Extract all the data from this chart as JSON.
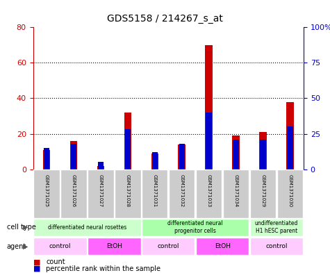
{
  "title": "GDS5158 / 214267_s_at",
  "samples": [
    "GSM1371025",
    "GSM1371026",
    "GSM1371027",
    "GSM1371028",
    "GSM1371031",
    "GSM1371032",
    "GSM1371033",
    "GSM1371034",
    "GSM1371029",
    "GSM1371030"
  ],
  "counts": [
    11,
    16,
    2,
    32,
    9,
    14,
    70,
    19,
    21,
    38
  ],
  "percentiles": [
    15,
    18,
    5,
    28,
    12,
    18,
    40,
    21,
    21,
    30
  ],
  "left_ylim": [
    0,
    80
  ],
  "right_ylim": [
    0,
    100
  ],
  "left_yticks": [
    0,
    20,
    40,
    60,
    80
  ],
  "right_yticks": [
    0,
    25,
    50,
    75,
    100
  ],
  "right_yticklabels": [
    "0",
    "25",
    "50",
    "75",
    "100%"
  ],
  "count_color": "#cc0000",
  "percentile_color": "#0000cc",
  "bar_width": 0.18,
  "cell_type_groups": [
    {
      "label": "differentiated neural rosettes",
      "start": 0,
      "end": 3,
      "color": "#ccffcc"
    },
    {
      "label": "differentiated neural\nprogenitor cells",
      "start": 4,
      "end": 7,
      "color": "#aaffaa"
    },
    {
      "label": "undifferentiated\nH1 hESC parent",
      "start": 8,
      "end": 9,
      "color": "#ccffcc"
    }
  ],
  "agent_groups": [
    {
      "label": "control",
      "start": 0,
      "end": 1,
      "color": "#ffccff"
    },
    {
      "label": "EtOH",
      "start": 2,
      "end": 3,
      "color": "#ff66ff"
    },
    {
      "label": "control",
      "start": 4,
      "end": 5,
      "color": "#ffccff"
    },
    {
      "label": "EtOH",
      "start": 6,
      "end": 7,
      "color": "#ff66ff"
    },
    {
      "label": "control",
      "start": 8,
      "end": 9,
      "color": "#ffccff"
    }
  ],
  "sample_bg_color": "#cccccc",
  "grid_color": "#000000",
  "axes_bg": "#ffffff"
}
